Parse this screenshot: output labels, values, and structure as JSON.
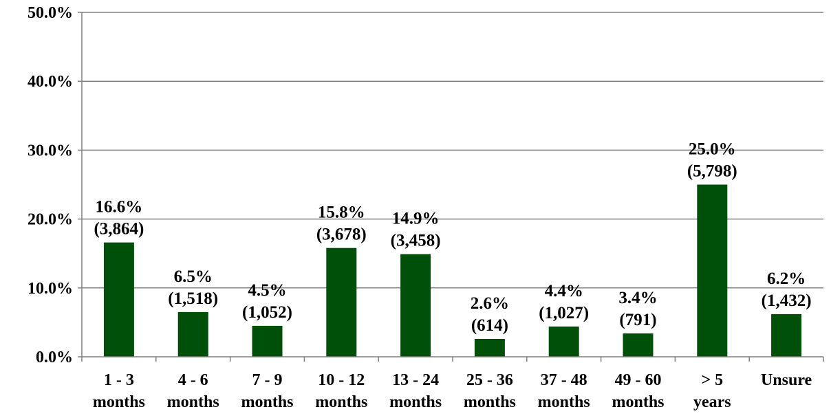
{
  "chart_data": {
    "type": "bar",
    "categories": [
      [
        "1 - 3",
        "months"
      ],
      [
        "4 - 6",
        "months"
      ],
      [
        "7 - 9",
        "months"
      ],
      [
        "10 - 12",
        "months"
      ],
      [
        "13 - 24",
        "months"
      ],
      [
        "25 - 36",
        "months"
      ],
      [
        "37 - 48",
        "months"
      ],
      [
        "49 - 60",
        "months"
      ],
      [
        "> 5",
        "years"
      ],
      [
        "Unsure"
      ]
    ],
    "values": [
      16.6,
      6.5,
      4.5,
      15.8,
      14.9,
      2.6,
      4.4,
      3.4,
      25.0,
      6.2
    ],
    "data_labels": [
      [
        "16.6%",
        "(3,864)"
      ],
      [
        "6.5%",
        "(1,518)"
      ],
      [
        "4.5%",
        "(1,052)"
      ],
      [
        "15.8%",
        "(3,678)"
      ],
      [
        "14.9%",
        "(3,458)"
      ],
      [
        "2.6%",
        "(614)"
      ],
      [
        "4.4%",
        "(1,027)"
      ],
      [
        "3.4%",
        "(791)"
      ],
      [
        "25.0%",
        "(5,798)"
      ],
      [
        "6.2%",
        "(1,432)"
      ]
    ],
    "y_ticks": [
      "0.0%",
      "10.0%",
      "20.0%",
      "30.0%",
      "40.0%",
      "50.0%"
    ],
    "ylim": [
      0,
      50
    ],
    "grid": true,
    "legend": "none",
    "title": "",
    "xlabel": "",
    "ylabel": "",
    "colors": {
      "bar": "#00500a",
      "grid": "#808080",
      "axis": "#808080"
    }
  }
}
